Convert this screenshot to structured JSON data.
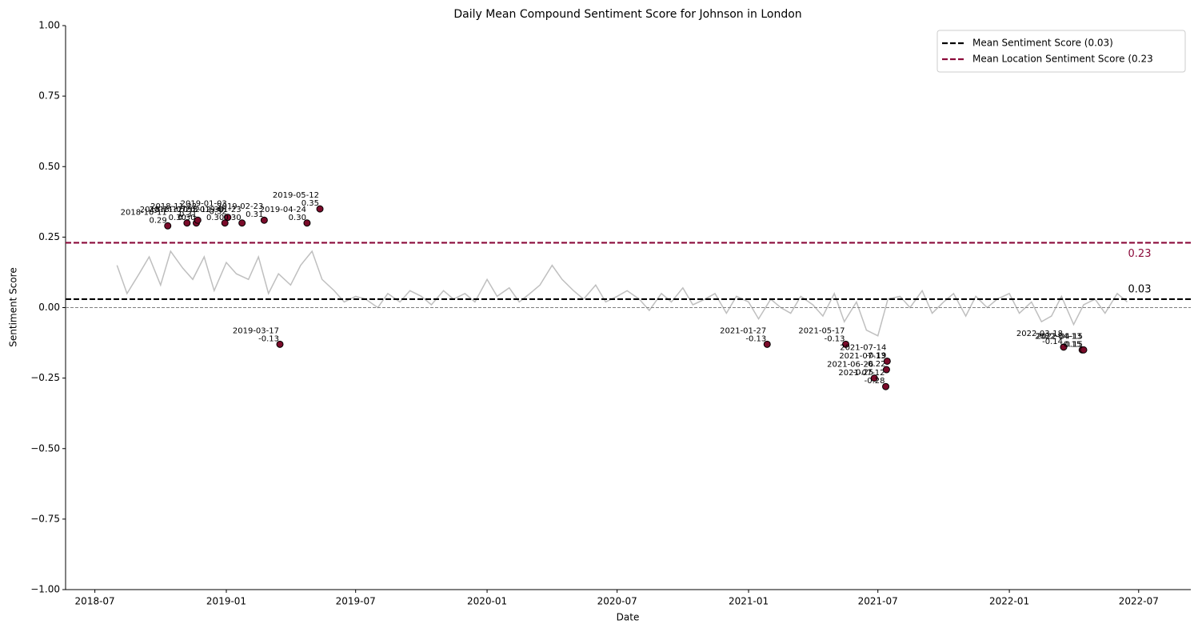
{
  "chart_data": {
    "type": "line",
    "title": "Daily Mean Compound Sentiment Score for Johnson in London",
    "x_label": "Date",
    "y_label": "Sentiment Score",
    "xlim": [
      "2018-05-21",
      "2022-09-12"
    ],
    "xticks": [
      {
        "value": "2018-07-01",
        "label": "2018-07"
      },
      {
        "value": "2019-01-01",
        "label": "2019-01"
      },
      {
        "value": "2019-07-01",
        "label": "2019-07"
      },
      {
        "value": "2020-01-01",
        "label": "2020-01"
      },
      {
        "value": "2020-07-01",
        "label": "2020-07"
      },
      {
        "value": "2021-01-01",
        "label": "2021-01"
      },
      {
        "value": "2021-07-01",
        "label": "2021-07"
      },
      {
        "value": "2022-01-01",
        "label": "2022-01"
      },
      {
        "value": "2022-07-01",
        "label": "2022-07"
      }
    ],
    "ylim": [
      -1,
      1
    ],
    "yticks": [
      {
        "value": -1,
        "label": "−1.00"
      },
      {
        "value": -0.75,
        "label": "−0.75"
      },
      {
        "value": -0.5,
        "label": "−0.50"
      },
      {
        "value": -0.25,
        "label": "−0.25"
      },
      {
        "value": 0,
        "label": "0.00"
      },
      {
        "value": 0.25,
        "label": "0.25"
      },
      {
        "value": 0.5,
        "label": "0.50"
      },
      {
        "value": 0.75,
        "label": "0.75"
      },
      {
        "value": 1,
        "label": "1.00"
      }
    ],
    "legend_position": "upper right",
    "series": [
      {
        "color": "#bfbfbf",
        "x": [
          "2018-08-01",
          "2018-08-15",
          "2018-09-01",
          "2018-09-15",
          "2018-10-01",
          "2018-10-15",
          "2018-11-01",
          "2018-11-15",
          "2018-12-01",
          "2018-12-15",
          "2019-01-01",
          "2019-01-15",
          "2019-02-01",
          "2019-02-15",
          "2019-03-01",
          "2019-03-15",
          "2019-04-01",
          "2019-04-15",
          "2019-05-01",
          "2019-05-15",
          "2019-06-01",
          "2019-06-15",
          "2019-07-01",
          "2019-07-15",
          "2019-08-01",
          "2019-08-15",
          "2019-09-01",
          "2019-09-15",
          "2019-10-01",
          "2019-10-15",
          "2019-11-01",
          "2019-11-15",
          "2019-12-01",
          "2019-12-15",
          "2020-01-01",
          "2020-01-15",
          "2020-02-01",
          "2020-02-15",
          "2020-03-01",
          "2020-03-15",
          "2020-04-01",
          "2020-04-15",
          "2020-05-01",
          "2020-05-15",
          "2020-06-01",
          "2020-06-15",
          "2020-07-01",
          "2020-07-15",
          "2020-08-01",
          "2020-08-15",
          "2020-09-01",
          "2020-09-15",
          "2020-10-01",
          "2020-10-15",
          "2020-11-01",
          "2020-11-15",
          "2020-12-01",
          "2020-12-15",
          "2021-01-01",
          "2021-01-15",
          "2021-02-01",
          "2021-02-15",
          "2021-03-01",
          "2021-03-15",
          "2021-04-01",
          "2021-04-15",
          "2021-05-01",
          "2021-05-15",
          "2021-06-01",
          "2021-06-15",
          "2021-07-01",
          "2021-07-15",
          "2021-08-01",
          "2021-08-15",
          "2021-09-01",
          "2021-09-15",
          "2021-10-01",
          "2021-10-15",
          "2021-11-01",
          "2021-11-15",
          "2021-12-01",
          "2021-12-15",
          "2022-01-01",
          "2022-01-15",
          "2022-02-01",
          "2022-02-15",
          "2022-03-01",
          "2022-03-15",
          "2022-04-01",
          "2022-04-15",
          "2022-05-01",
          "2022-05-15",
          "2022-06-01",
          "2022-06-15"
        ],
        "values": [
          0.15,
          0.05,
          0.12,
          0.18,
          0.08,
          0.2,
          0.14,
          0.1,
          0.18,
          0.06,
          0.16,
          0.12,
          0.1,
          0.18,
          0.05,
          0.12,
          0.08,
          0.15,
          0.2,
          0.1,
          0.06,
          0.02,
          0.04,
          0.03,
          0.0,
          0.05,
          0.02,
          0.06,
          0.04,
          0.01,
          0.06,
          0.03,
          0.05,
          0.02,
          0.1,
          0.04,
          0.07,
          0.02,
          0.05,
          0.08,
          0.15,
          0.1,
          0.06,
          0.03,
          0.08,
          0.02,
          0.04,
          0.06,
          0.03,
          -0.01,
          0.05,
          0.02,
          0.07,
          0.01,
          0.03,
          0.05,
          -0.02,
          0.04,
          0.02,
          -0.04,
          0.03,
          0.0,
          -0.02,
          0.04,
          0.01,
          -0.03,
          0.05,
          -0.05,
          0.02,
          -0.08,
          -0.1,
          0.03,
          0.04,
          0.0,
          0.06,
          -0.02,
          0.02,
          0.05,
          -0.03,
          0.04,
          0.0,
          0.03,
          0.05,
          -0.02,
          0.02,
          -0.05,
          -0.03,
          0.04,
          -0.06,
          0.01,
          0.03,
          -0.02,
          0.05,
          0.02
        ]
      }
    ],
    "highlights": {
      "color": "#7a0b2a",
      "x": [
        "2018-10-11",
        "2018-11-07",
        "2018-11-20",
        "2018-11-22",
        "2018-12-30",
        "2019-01-03",
        "2019-01-23",
        "2019-02-23",
        "2019-03-17",
        "2019-04-24",
        "2019-05-12",
        "2021-01-27",
        "2021-05-17",
        "2021-06-26",
        "2021-07-12",
        "2021-07-13",
        "2021-07-14",
        "2022-03-18",
        "2022-04-13",
        "2022-04-15"
      ],
      "values": [
        0.29,
        0.3,
        0.3,
        0.31,
        0.3,
        0.32,
        0.3,
        0.31,
        -0.13,
        0.3,
        0.35,
        -0.13,
        -0.13,
        -0.25,
        -0.28,
        -0.22,
        -0.19,
        -0.14,
        -0.15,
        -0.15
      ],
      "value_labels": [
        "0.29",
        "0.30",
        "0.30",
        "0.31",
        "0.30",
        "0.32",
        "0.30",
        "0.31",
        "-0.13",
        "0.30",
        "0.35",
        "-0.13",
        "-0.13",
        "-0.25",
        "-0.28",
        "-0.22",
        "-0.19",
        "-0.14",
        "-0.15",
        "-0.15"
      ]
    },
    "reference_lines": [
      {
        "name": "Mean Sentiment Score (0.03)",
        "value": 0.03,
        "color": "#000000"
      },
      {
        "name": "Mean Location Sentiment Score (0.23",
        "value": 0.23,
        "color": "#8b0a3a"
      },
      {
        "value": 0,
        "color": "#808080"
      }
    ]
  }
}
